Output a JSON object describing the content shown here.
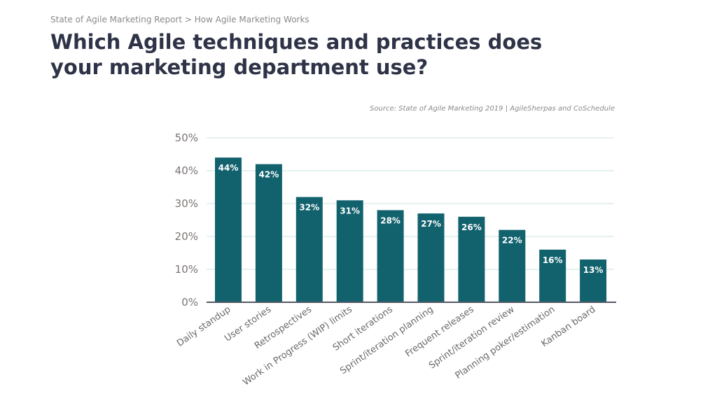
{
  "breadcrumb": "State of Agile Marketing Report  > How Agile Marketing Works",
  "title": "Which Agile techniques and practices does your marketing department use?",
  "source": "Source: State of Agile Marketing 2019 | AgileSherpas and CoSchedule",
  "colors": {
    "bar": "#12626e",
    "grid": "#d3ebe6",
    "axis": "#555a66"
  },
  "chart_data": {
    "type": "bar",
    "title": "",
    "xlabel": "",
    "ylabel": "",
    "ylim": [
      0,
      50
    ],
    "yticks": [
      "0%",
      "10%",
      "20%",
      "30%",
      "40%",
      "50%"
    ],
    "grid": true,
    "categories": [
      "Daily standup",
      "User stories",
      "Retrospectives",
      "Work in Progress (WIP) limits",
      "Short iterations",
      "Sprint/iteration planning",
      "Frequent releases",
      "Sprint/iteration review",
      "Planning poker/estimation",
      "Kanban board"
    ],
    "values": [
      44,
      42,
      32,
      31,
      28,
      27,
      26,
      22,
      16,
      13
    ],
    "data_labels": [
      "44%",
      "42%",
      "32%",
      "31%",
      "28%",
      "27%",
      "26%",
      "22%",
      "16%",
      "13%"
    ]
  }
}
